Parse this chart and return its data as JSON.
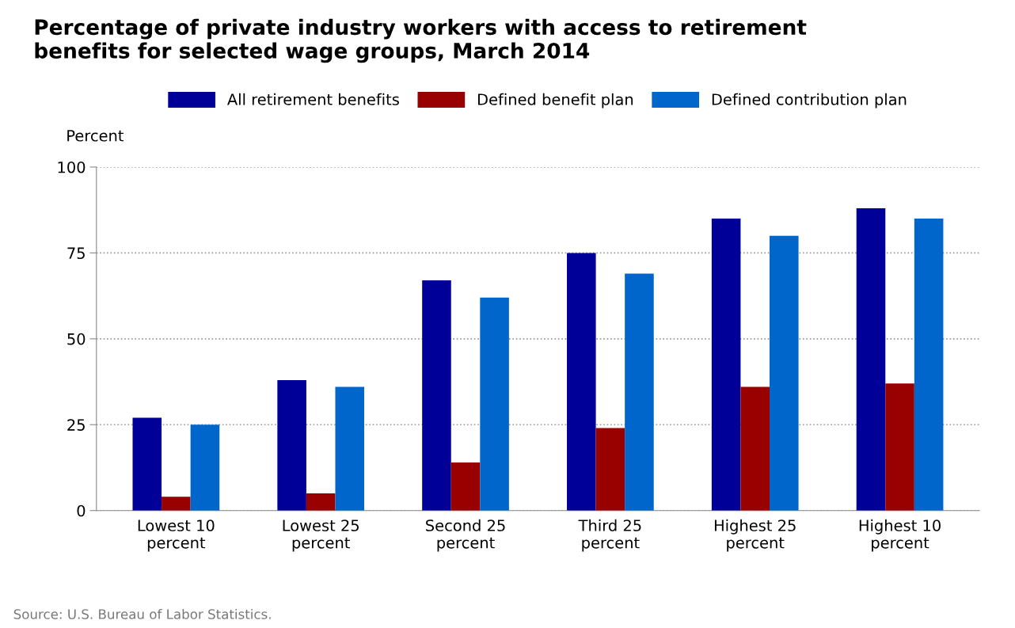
{
  "chart_data": {
    "type": "bar",
    "title": "Percentage of private industry workers with access to retirement\nbenefits for selected wage groups, March 2014",
    "ylabel": "Percent",
    "categories": [
      "Lowest 10\npercent",
      "Lowest 25\npercent",
      "Second 25\npercent",
      "Third 25\npercent",
      "Highest 25\npercent",
      "Highest 10\npercent"
    ],
    "series": [
      {
        "name": "All retirement benefits",
        "color": "#000099",
        "values": [
          27,
          38,
          67,
          75,
          85,
          88
        ]
      },
      {
        "name": "Defined benefit plan",
        "color": "#990000",
        "values": [
          4,
          5,
          14,
          24,
          36,
          37
        ]
      },
      {
        "name": "Defined contribution plan",
        "color": "#0066cc",
        "values": [
          25,
          36,
          62,
          69,
          80,
          85
        ]
      }
    ],
    "ylim": [
      0,
      100
    ],
    "yticks": [
      0,
      25,
      50,
      75,
      100
    ],
    "grid": "y",
    "legend": "top",
    "annotations": [
      "Source: U.S. Bureau of Labor Statistics."
    ]
  }
}
